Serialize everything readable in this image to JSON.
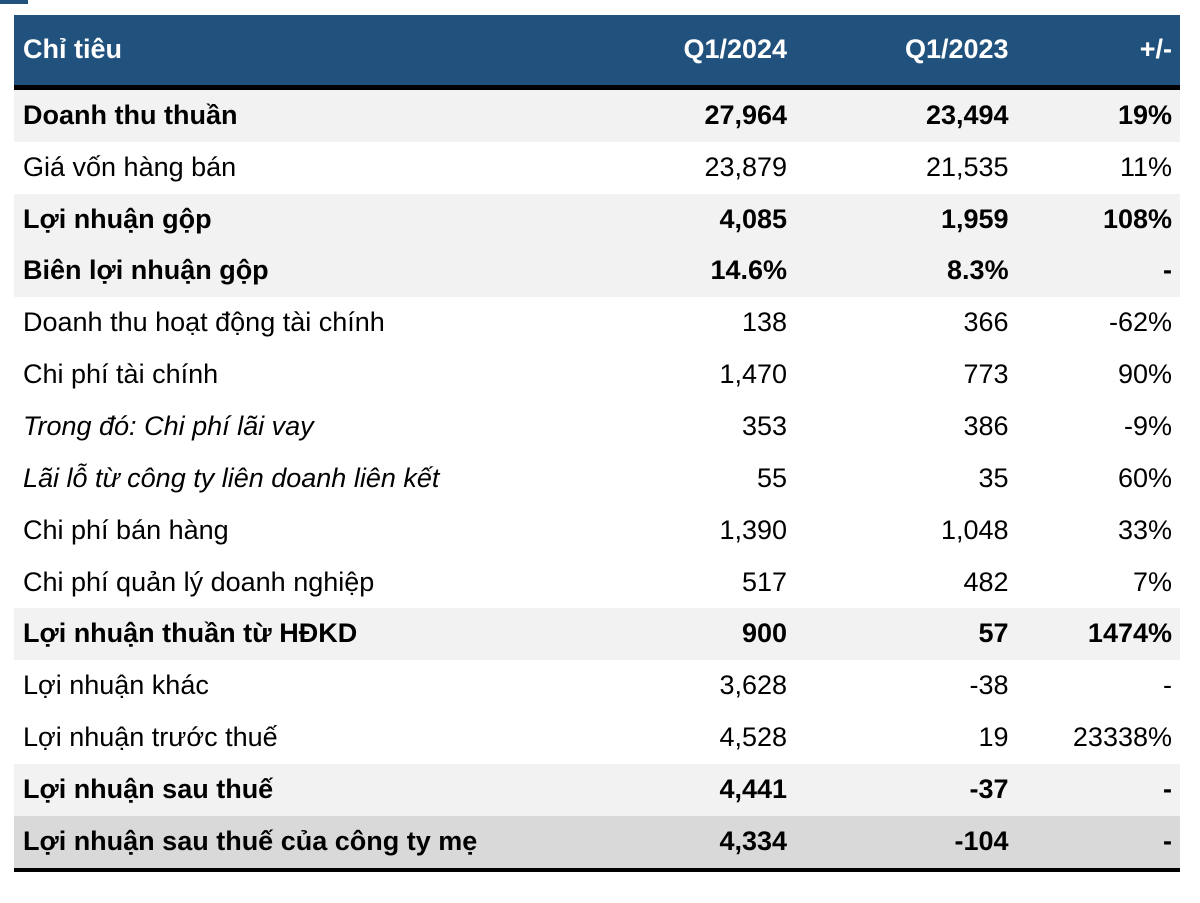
{
  "chart_data": {
    "type": "table",
    "columns": [
      "Chỉ tiêu",
      "Q1/2024",
      "Q1/2023",
      "+/-"
    ],
    "rows": [
      {
        "label": "Doanh thu thuần",
        "q1_2024": "27,964",
        "q1_2023": "23,494",
        "change": "19%",
        "emphasis": "bold",
        "background": "gray"
      },
      {
        "label": "Giá vốn hàng bán",
        "q1_2024": "23,879",
        "q1_2023": "21,535",
        "change": "11%",
        "emphasis": "none",
        "background": "white"
      },
      {
        "label": "Lợi nhuận gộp",
        "q1_2024": "4,085",
        "q1_2023": "1,959",
        "change": "108%",
        "emphasis": "bold",
        "background": "gray"
      },
      {
        "label": "Biên lợi nhuận gộp",
        "q1_2024": "14.6%",
        "q1_2023": "8.3%",
        "change": "-",
        "emphasis": "bold",
        "background": "gray"
      },
      {
        "label": "Doanh thu hoạt động tài chính",
        "q1_2024": "138",
        "q1_2023": "366",
        "change": "-62%",
        "emphasis": "none",
        "background": "white"
      },
      {
        "label": "Chi phí tài chính",
        "q1_2024": "1,470",
        "q1_2023": "773",
        "change": "90%",
        "emphasis": "none",
        "background": "white"
      },
      {
        "label": "Trong đó: Chi phí lãi vay",
        "q1_2024": "353",
        "q1_2023": "386",
        "change": "-9%",
        "emphasis": "italic",
        "background": "white"
      },
      {
        "label": "Lãi lỗ từ công ty liên doanh liên kết",
        "q1_2024": "55",
        "q1_2023": "35",
        "change": "60%",
        "emphasis": "italic",
        "background": "white"
      },
      {
        "label": "Chi phí bán hàng",
        "q1_2024": "1,390",
        "q1_2023": "1,048",
        "change": "33%",
        "emphasis": "none",
        "background": "white"
      },
      {
        "label": "Chi phí quản lý doanh nghiệp",
        "q1_2024": "517",
        "q1_2023": "482",
        "change": "7%",
        "emphasis": "none",
        "background": "white"
      },
      {
        "label": "Lợi nhuận thuần từ HĐKD",
        "q1_2024": "900",
        "q1_2023": "57",
        "change": "1474%",
        "emphasis": "bold",
        "background": "gray"
      },
      {
        "label": "Lợi nhuận khác",
        "q1_2024": "3,628",
        "q1_2023": "-38",
        "change": "-",
        "emphasis": "none",
        "background": "white"
      },
      {
        "label": "Lợi nhuận trước thuế",
        "q1_2024": "4,528",
        "q1_2023": "19",
        "change": "23338%",
        "emphasis": "none",
        "background": "white"
      },
      {
        "label": "Lợi nhuận sau thuế",
        "q1_2024": "4,441",
        "q1_2023": "-37",
        "change": "-",
        "emphasis": "bold",
        "background": "gray"
      },
      {
        "label": "Lợi nhuận sau thuế của công ty mẹ",
        "q1_2024": "4,334",
        "q1_2023": "-104",
        "change": "-",
        "emphasis": "bold",
        "background": "dark",
        "final": true
      }
    ]
  },
  "colors": {
    "header_bg": "#21527D",
    "header_text": "#FFFFFF",
    "body_text": "#000000",
    "row_gray": "#F2F2F2",
    "row_dark": "#D9D9D9",
    "border": "#000000"
  }
}
